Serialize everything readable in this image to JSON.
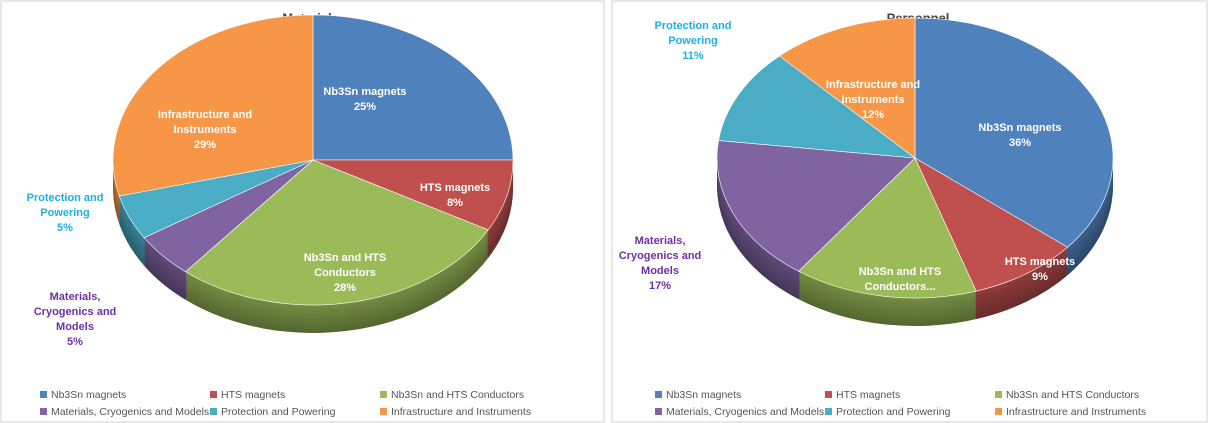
{
  "chart_data": [
    {
      "type": "pie",
      "title": "Material",
      "categories": [
        "Nb3Sn magnets",
        "HTS magnets",
        "Nb3Sn and HTS Conductors",
        "Materials, Cryogenics and Models",
        "Protection and Powering",
        "Infrastructure and Instruments"
      ],
      "values": [
        25,
        8,
        28,
        5,
        5,
        29
      ],
      "value_labels": [
        "25%",
        "8%",
        "28%",
        "5%",
        "5%",
        "29%"
      ],
      "slice_labels": [
        [
          "Nb3Sn magnets"
        ],
        [
          "HTS magnets"
        ],
        [
          "Nb3Sn and HTS",
          "Conductors"
        ],
        [
          "Materials,",
          "Cryogenics and",
          "Models"
        ],
        [
          "Protection and",
          "Powering"
        ],
        [
          "Infrastructure and",
          "Instruments"
        ]
      ],
      "colors": [
        "#4f81bd",
        "#c0504d",
        "#9bbb59",
        "#8064a2",
        "#4bacc6",
        "#f79646"
      ],
      "legend": "bottom"
    },
    {
      "type": "pie",
      "title": "Personnel",
      "categories": [
        "Nb3Sn magnets",
        "HTS magnets",
        "Nb3Sn and HTS Conductors",
        "Materials, Cryogenics and Models",
        "Protection and Powering",
        "Infrastructure and Instruments"
      ],
      "values": [
        36,
        9,
        15,
        17,
        11,
        12
      ],
      "value_labels": [
        "36%",
        "9%",
        null,
        "17%",
        "11%",
        "12%"
      ],
      "slice_labels": [
        [
          "Nb3Sn magnets"
        ],
        [
          "HTS magnets"
        ],
        [
          "Nb3Sn and HTS",
          "Conductors..."
        ],
        [
          "Materials,",
          "Cryogenics and",
          "Models"
        ],
        [
          "Protection and",
          "Powering"
        ],
        [
          "Infrastructure and",
          "Instruments"
        ]
      ],
      "colors": [
        "#4f81bd",
        "#c0504d",
        "#9bbb59",
        "#8064a2",
        "#4bacc6",
        "#f79646"
      ],
      "legend": "bottom"
    }
  ]
}
